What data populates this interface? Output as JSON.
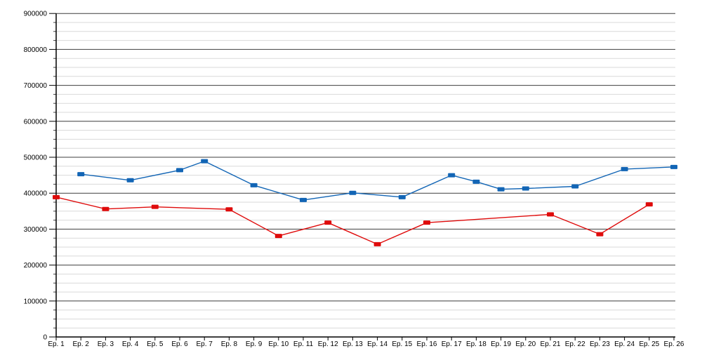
{
  "window": {
    "background_color": "#ffffff"
  },
  "chart_data": {
    "type": "line",
    "title": "",
    "xlabel": "",
    "ylabel": "",
    "legend": "none",
    "grid": {
      "show": true,
      "major_color": "#3f3f3f",
      "minor_color": "#d9d9d9"
    },
    "axis_color": "#000000",
    "x_categories": [
      "Ep. 1",
      "Ep. 2",
      "Ep. 3",
      "Ep. 4",
      "Ep. 5",
      "Ep. 6",
      "Ep. 7",
      "Ep. 8",
      "Ep. 9",
      "Ep. 10",
      "Ep. 11",
      "Ep. 12",
      "Ep. 13",
      "Ep. 14",
      "Ep. 15",
      "Ep. 16",
      "Ep. 17",
      "Ep. 18",
      "Ep. 19",
      "Ep. 20",
      "Ep. 21",
      "Ep. 22",
      "Ep. 23",
      "Ep. 24",
      "Ep. 25",
      "Ep. 26"
    ],
    "y_axis": {
      "min": 0,
      "max": 900000,
      "major_step": 100000,
      "minor_step": 25000,
      "tick_labels": [
        "0",
        "100000",
        "200000",
        "300000",
        "400000",
        "500000",
        "600000",
        "700000",
        "800000",
        "900000"
      ]
    },
    "series": [
      {
        "id": "series-blue",
        "color": "#1265b5",
        "marker": "square",
        "points": [
          {
            "episode": 2,
            "value": 453000
          },
          {
            "episode": 4,
            "value": 436000
          },
          {
            "episode": 6,
            "value": 464000
          },
          {
            "episode": 7,
            "value": 489000
          },
          {
            "episode": 9,
            "value": 422000
          },
          {
            "episode": 11,
            "value": 381000
          },
          {
            "episode": 13,
            "value": 401000
          },
          {
            "episode": 15,
            "value": 389000
          },
          {
            "episode": 17,
            "value": 450000
          },
          {
            "episode": 18,
            "value": 432000
          },
          {
            "episode": 19,
            "value": 411000
          },
          {
            "episode": 20,
            "value": 413000
          },
          {
            "episode": 22,
            "value": 419000
          },
          {
            "episode": 24,
            "value": 467000
          },
          {
            "episode": 26,
            "value": 473000
          }
        ]
      },
      {
        "id": "series-red",
        "color": "#df0b0b",
        "marker": "square",
        "points": [
          {
            "episode": 1,
            "value": 389000
          },
          {
            "episode": 3,
            "value": 356000
          },
          {
            "episode": 5,
            "value": 362000
          },
          {
            "episode": 8,
            "value": 355000
          },
          {
            "episode": 10,
            "value": 281000
          },
          {
            "episode": 12,
            "value": 318000
          },
          {
            "episode": 14,
            "value": 258000
          },
          {
            "episode": 16,
            "value": 318000
          },
          {
            "episode": 21,
            "value": 341000
          },
          {
            "episode": 23,
            "value": 286000
          },
          {
            "episode": 25,
            "value": 369000
          }
        ]
      }
    ]
  }
}
